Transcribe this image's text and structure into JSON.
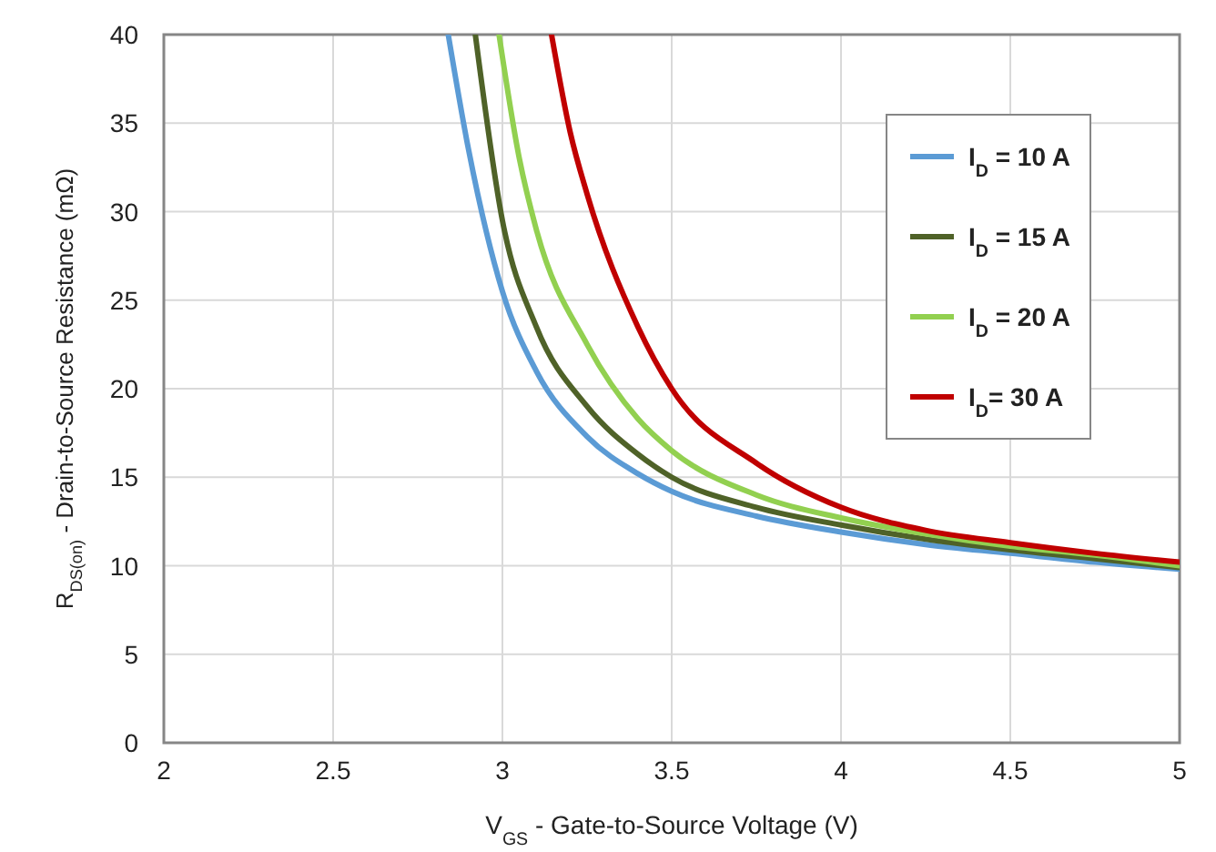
{
  "chart_data": {
    "type": "line",
    "xlabel": "V$_{GS}$ - Gate-to-Source Voltage (V)",
    "ylabel": "R$_{DS(on)}$ - Drain-to-Source Resistance (mΩ)",
    "xlim": [
      2,
      5
    ],
    "xticks": [
      2,
      2.5,
      3,
      3.5,
      4,
      4.5,
      5
    ],
    "ylim": [
      0,
      40
    ],
    "yticks": [
      0,
      5,
      10,
      15,
      20,
      25,
      30,
      35,
      40
    ],
    "grid": true,
    "legend": "top right",
    "marker": "none",
    "line_style": "solid",
    "series": [
      {
        "name": "I$_{D}$ = 10 A",
        "color": "#5b9bd5",
        "x": [
          2.84,
          2.9,
          3.0,
          3.1,
          3.25,
          3.4,
          3.5,
          3.75,
          4,
          4.25,
          4.5,
          4.75,
          5
        ],
        "values": [
          40,
          33.5,
          25.5,
          21,
          17.3,
          15.2,
          14.2,
          12.8,
          11.9,
          11.2,
          10.7,
          10.2,
          9.8
        ]
      },
      {
        "name": "I$_{D}$ = 15 A",
        "color": "#4f6228",
        "x": [
          2.92,
          3.0,
          3.1,
          3.25,
          3.4,
          3.5,
          3.75,
          4,
          4.25,
          4.5,
          4.75,
          5
        ],
        "values": [
          40,
          29.5,
          23.5,
          19,
          16.3,
          15,
          13.3,
          12.3,
          11.5,
          10.9,
          10.4,
          9.9
        ]
      },
      {
        "name": "I$_{D}$ = 20 A",
        "color": "#92d050",
        "x": [
          2.99,
          3.05,
          3.1,
          3.25,
          3.4,
          3.5,
          3.75,
          4,
          4.25,
          4.5,
          4.75,
          5
        ],
        "values": [
          40,
          33,
          29,
          22.5,
          18.3,
          16.5,
          14,
          12.7,
          11.8,
          11.1,
          10.6,
          10
        ]
      },
      {
        "name": "I$_{D}$= 30 A",
        "color": "#c00000",
        "x": [
          3.145,
          3.2,
          3.25,
          3.4,
          3.5,
          3.75,
          4,
          4.25,
          4.5,
          4.75,
          5
        ],
        "values": [
          40,
          34.5,
          31,
          23.5,
          20,
          15.8,
          13.3,
          12,
          11.3,
          10.7,
          10.2
        ]
      }
    ]
  }
}
